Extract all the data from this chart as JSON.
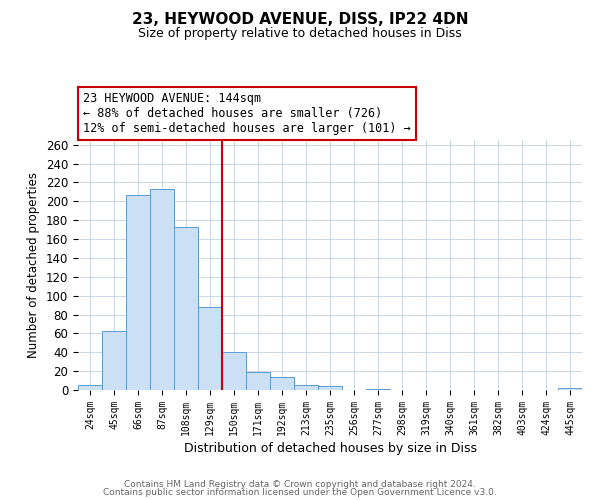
{
  "title": "23, HEYWOOD AVENUE, DISS, IP22 4DN",
  "subtitle": "Size of property relative to detached houses in Diss",
  "xlabel": "Distribution of detached houses by size in Diss",
  "ylabel": "Number of detached properties",
  "bar_color": "#cce0f5",
  "bar_edge_color": "#5b9bd5",
  "bin_labels": [
    "24sqm",
    "45sqm",
    "66sqm",
    "87sqm",
    "108sqm",
    "129sqm",
    "150sqm",
    "171sqm",
    "192sqm",
    "213sqm",
    "235sqm",
    "256sqm",
    "277sqm",
    "298sqm",
    "319sqm",
    "340sqm",
    "361sqm",
    "382sqm",
    "403sqm",
    "424sqm",
    "445sqm"
  ],
  "bin_values": [
    5,
    63,
    207,
    213,
    173,
    88,
    40,
    19,
    14,
    5,
    4,
    0,
    1,
    0,
    0,
    0,
    0,
    0,
    0,
    0,
    2
  ],
  "vline_index": 6,
  "vline_color": "#cc0000",
  "annotation_line1": "23 HEYWOOD AVENUE: 144sqm",
  "annotation_line2": "← 88% of detached houses are smaller (726)",
  "annotation_line3": "12% of semi-detached houses are larger (101) →",
  "annotation_box_color": "#ffffff",
  "annotation_border_color": "#cc0000",
  "ylim": [
    0,
    265
  ],
  "yticks": [
    0,
    20,
    40,
    60,
    80,
    100,
    120,
    140,
    160,
    180,
    200,
    220,
    240,
    260
  ],
  "footer1": "Contains HM Land Registry data © Crown copyright and database right 2024.",
  "footer2": "Contains public sector information licensed under the Open Government Licence v3.0.",
  "bg_color": "#ffffff",
  "grid_color": "#c8d8e8"
}
